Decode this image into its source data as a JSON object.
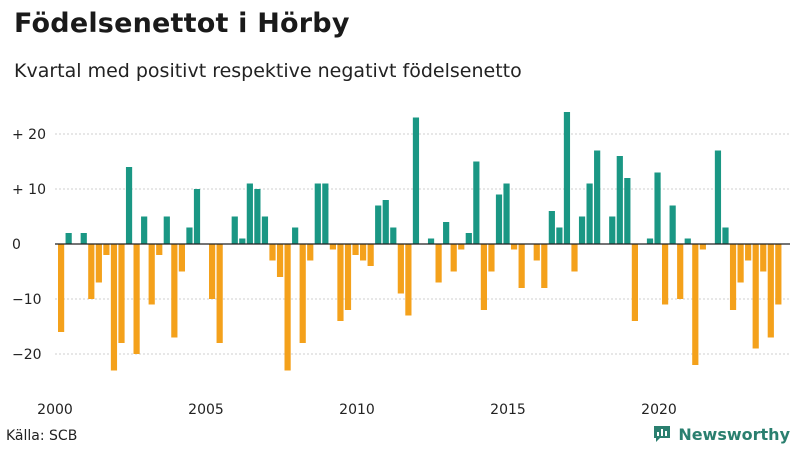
{
  "header": {
    "title": "Födelsenettot i Hörby",
    "subtitle": "Kvartal med positivt respektive negativt födelsenetto"
  },
  "footer": {
    "source": "Källa: SCB",
    "brand": "Newsworthy"
  },
  "colors": {
    "positive": "#1a9784",
    "negative": "#f4a11b",
    "grid": "#cfcfcf",
    "axis": "#222222",
    "brand": "#2a7f6f"
  },
  "chart_data": {
    "type": "bar",
    "xlabel": "",
    "ylabel": "",
    "ylim": [
      -27,
      27
    ],
    "y_ticks": [
      {
        "value": 20,
        "label": "+ 20"
      },
      {
        "value": 10,
        "label": "+ 10"
      },
      {
        "value": 0,
        "label": "0"
      },
      {
        "value": -10,
        "label": "−10"
      },
      {
        "value": -20,
        "label": "−20"
      }
    ],
    "x_ticks": [
      {
        "year": 2000,
        "label": "2000"
      },
      {
        "year": 2005,
        "label": "2005"
      },
      {
        "year": 2010,
        "label": "2010"
      },
      {
        "year": 2015,
        "label": "2015"
      },
      {
        "year": 2020,
        "label": "2020"
      }
    ],
    "start_year": 2000,
    "quarters_per_year": 4,
    "values": [
      -16,
      2,
      0,
      2,
      -10,
      -7,
      -2,
      -23,
      -18,
      14,
      -20,
      5,
      -11,
      -2,
      5,
      -17,
      -5,
      3,
      10,
      0,
      -10,
      -18,
      0,
      5,
      1,
      11,
      10,
      5,
      -3,
      -6,
      -23,
      3,
      -18,
      -3,
      11,
      11,
      -1,
      -14,
      -12,
      -2,
      -3,
      -4,
      7,
      8,
      3,
      -9,
      -13,
      23,
      0,
      1,
      -7,
      4,
      -5,
      -1,
      2,
      15,
      -12,
      -5,
      9,
      11,
      -1,
      -8,
      0,
      -3,
      -8,
      6,
      3,
      24,
      -5,
      5,
      11,
      17,
      0,
      5,
      16,
      12,
      -14,
      0,
      1,
      13,
      -11,
      7,
      -10,
      1,
      -22,
      -1,
      0,
      17,
      3,
      -12,
      -7,
      -3,
      -19,
      -5,
      -17,
      -11
    ]
  }
}
